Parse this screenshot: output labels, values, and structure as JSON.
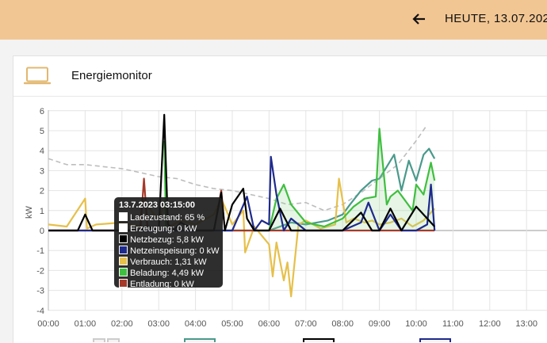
{
  "header": {
    "back_icon": "arrow-left-icon",
    "date_label": "HEUTE, 13.07.2023"
  },
  "card": {
    "icon": "laptop-icon",
    "title": "Energiemonitor"
  },
  "colors": {
    "header_bg": "#f2c693",
    "ladezustand": "#bdbdbd",
    "erzeugung": "#4a9a8c",
    "netzbezug": "#000000",
    "netzeinspeisung": "#1e2a8c",
    "verbrauch": "#e6c04a",
    "beladung": "#3fbf3f",
    "entladung": "#a53a2a"
  },
  "tooltip": {
    "title": "13.7.2023 03:15:00",
    "rows": [
      {
        "label": "Ladezustand: 65 %",
        "color": "#ffffff"
      },
      {
        "label": "Erzeugung: 0 kW",
        "color": "#ffffff"
      },
      {
        "label": "Netzbezug: 5,8 kW",
        "color": "#000000"
      },
      {
        "label": "Netzeinspeisung: 0 kW",
        "color": "#1e2a8c"
      },
      {
        "label": "Verbrauch: 1,31 kW",
        "color": "#e6c04a"
      },
      {
        "label": "Beladung: 4,49 kW",
        "color": "#3fbf3f"
      },
      {
        "label": "Entladung: 0 kW",
        "color": "#a53a2a"
      }
    ]
  },
  "chart_data": {
    "type": "line",
    "ylabel": "kW",
    "xlim": [
      "00:00",
      "13:30"
    ],
    "ylim": [
      -4,
      6
    ],
    "x_ticks": [
      "00:00",
      "01:00",
      "02:00",
      "03:00",
      "04:00",
      "05:00",
      "06:00",
      "07:00",
      "08:00",
      "09:00",
      "10:00",
      "11:00",
      "12:00",
      "13:00"
    ],
    "y_ticks": [
      "6",
      "5",
      "4",
      "3",
      "2",
      "1",
      "0",
      "-1",
      "-2",
      "-3",
      "-4"
    ],
    "grid": true,
    "series": [
      {
        "name": "Ladezustand",
        "style": "dashed",
        "x": [
          0.0,
          0.5,
          1.0,
          1.5,
          2.0,
          2.5,
          3.0,
          3.5,
          4.0,
          4.5,
          5.0,
          5.5,
          6.0,
          6.5,
          7.0,
          7.5,
          8.0,
          8.5,
          9.0,
          9.5,
          10.0,
          10.3
        ],
        "values": [
          3.6,
          3.3,
          3.3,
          3.2,
          3.1,
          2.9,
          2.7,
          2.6,
          2.3,
          2.1,
          2.0,
          1.8,
          1.6,
          1.3,
          1.4,
          1.0,
          1.3,
          1.9,
          2.6,
          3.3,
          4.5,
          5.3
        ]
      },
      {
        "name": "Erzeugung",
        "x": [
          6.0,
          6.3,
          6.6,
          7.0,
          7.3,
          7.6,
          8.0,
          8.2,
          8.5,
          8.8,
          9.0,
          9.2,
          9.4,
          9.6,
          9.8,
          10.0,
          10.2,
          10.35,
          10.5
        ],
        "values": [
          0,
          0.2,
          0.4,
          0.3,
          0.4,
          0.5,
          0.8,
          1.3,
          2.0,
          2.5,
          2.6,
          3.2,
          3.8,
          2.0,
          3.5,
          2.5,
          3.8,
          4.1,
          3.6
        ]
      },
      {
        "name": "Netzbezug",
        "x": [
          0.0,
          0.8,
          1.0,
          1.2,
          1.5,
          2.0,
          2.5,
          2.7,
          3.0,
          3.15,
          3.25,
          3.4,
          3.6,
          4.0,
          4.5,
          4.7,
          4.8,
          5.0,
          5.3,
          5.4,
          5.6,
          6.0,
          6.3,
          6.6,
          7.0,
          7.5,
          8.0,
          8.5,
          8.8,
          9.0,
          9.3,
          9.6,
          10.0,
          10.5
        ],
        "values": [
          0,
          0,
          0.8,
          0,
          0,
          0,
          0,
          0.2,
          0,
          5.8,
          0.3,
          0,
          0.4,
          0,
          0,
          1.9,
          0,
          1.3,
          2.1,
          0.6,
          0,
          0,
          1.1,
          0,
          0,
          0,
          0,
          0.9,
          0,
          0,
          1.1,
          0,
          1.2,
          0.2
        ]
      },
      {
        "name": "Netzeinspeisung",
        "x": [
          0.0,
          2.0,
          4.0,
          5.0,
          5.4,
          5.6,
          5.8,
          6.0,
          6.05,
          6.2,
          6.4,
          6.6,
          7.0,
          7.5,
          8.0,
          8.5,
          8.7,
          9.0,
          9.3,
          9.6,
          10.0,
          10.3,
          10.4,
          10.5
        ],
        "values": [
          0,
          0,
          0,
          0,
          1.7,
          0,
          0.5,
          0.3,
          3.7,
          1.8,
          0,
          0.6,
          0,
          0,
          0,
          0.4,
          1.4,
          0,
          0.8,
          0,
          0,
          0.3,
          2.3,
          0
        ]
      },
      {
        "name": "Verbrauch",
        "x": [
          0.0,
          0.5,
          1.0,
          1.05,
          1.3,
          2.0,
          2.5,
          2.55,
          3.0,
          3.15,
          3.3,
          3.6,
          4.0,
          4.5,
          4.7,
          5.0,
          5.3,
          5.35,
          5.6,
          6.0,
          6.1,
          6.2,
          6.4,
          6.5,
          6.6,
          6.8,
          7.0,
          7.4,
          7.8,
          7.9,
          8.1,
          8.3,
          8.6,
          8.8,
          9.0,
          9.3,
          9.6,
          9.9,
          10.2,
          10.5
        ],
        "values": [
          0.3,
          0.2,
          1.6,
          0.1,
          0.3,
          0.4,
          0.2,
          1.6,
          0.5,
          1.31,
          0.2,
          0.5,
          0.3,
          0.8,
          1.6,
          0.3,
          1.0,
          -1.1,
          0.2,
          -0.7,
          -2.3,
          -0.6,
          -2.5,
          -1.6,
          -3.3,
          0.3,
          0.5,
          0.1,
          0.3,
          2.6,
          0.4,
          0.6,
          0.4,
          0.5,
          0.3,
          0.4,
          0.6,
          0.2,
          0.5,
          1.1
        ]
      },
      {
        "name": "Beladung",
        "x": [
          3.15,
          3.2,
          6.0,
          6.2,
          6.4,
          6.6,
          7.0,
          7.5,
          8.0,
          8.3,
          8.6,
          8.9,
          9.0,
          9.2,
          9.3,
          9.5,
          9.7,
          9.9,
          10.0,
          10.2,
          10.4,
          10.5
        ],
        "values": [
          4.49,
          0,
          0,
          1.6,
          2.3,
          1.3,
          0.4,
          0.2,
          0.6,
          1.2,
          1.6,
          1.7,
          5.1,
          1.3,
          1.7,
          2.0,
          1.5,
          1.0,
          2.3,
          1.8,
          3.4,
          2.5
        ]
      },
      {
        "name": "Entladung",
        "x": [
          0.0,
          1.0,
          2.5,
          2.6,
          2.7,
          3.0,
          4.5,
          4.7,
          4.8,
          5.0,
          6.0,
          7.0,
          8.0,
          9.0,
          10.0,
          10.5
        ],
        "values": [
          0,
          0,
          0,
          2.6,
          0,
          0,
          0,
          2.0,
          0,
          0,
          0,
          0,
          0,
          0,
          0,
          0
        ]
      }
    ]
  }
}
